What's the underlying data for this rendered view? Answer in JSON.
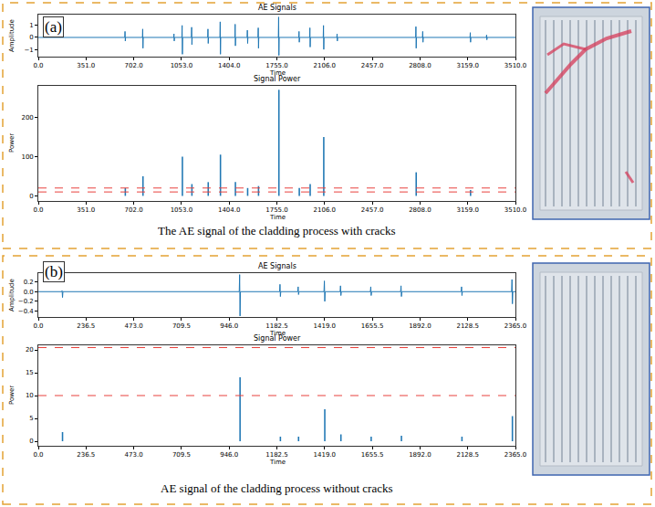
{
  "panels": [
    {
      "label": "(a)",
      "caption": "The AE signal of the cladding process with cracks"
    },
    {
      "label": "(b)",
      "caption": "AE signal of the cladding process without cracks"
    }
  ],
  "chart_data": [
    {
      "type": "line",
      "title": "AE Signals",
      "xlabel": "Time",
      "ylabel": "Amplitude",
      "color": "#1f77b4",
      "x": [
        0,
        636,
        638,
        640,
        642,
        766,
        768,
        770,
        772,
        996,
        998,
        1000,
        1002,
        1056,
        1058,
        1060,
        1062,
        1126,
        1128,
        1130,
        1132,
        1246,
        1248,
        1250,
        1252,
        1336,
        1338,
        1340,
        1342,
        1446,
        1448,
        1450,
        1452,
        1536,
        1538,
        1540,
        1542,
        1616,
        1618,
        1620,
        1622,
        1766,
        1768,
        1770,
        1772,
        1916,
        1918,
        1920,
        1922,
        1996,
        1998,
        2000,
        2002,
        2096,
        2098,
        2100,
        2102,
        2196,
        2198,
        2200,
        2202,
        2776,
        2778,
        2780,
        2782,
        2826,
        2828,
        2830,
        2832,
        3176,
        3178,
        3180,
        3182,
        3296,
        3298,
        3300,
        3302,
        3510
      ],
      "values": [
        0,
        0,
        0.5,
        -0.3,
        0,
        0,
        0.7,
        -0.9,
        0,
        0,
        0.3,
        -0.3,
        0,
        0,
        1.0,
        -1.4,
        0,
        0,
        0.85,
        -0.6,
        0,
        0,
        0.7,
        -0.5,
        0,
        0,
        1.3,
        -1.4,
        0,
        0,
        1.1,
        -0.7,
        0,
        0,
        0.6,
        -0.5,
        0,
        0,
        0.8,
        -0.9,
        0,
        0,
        1.7,
        -1.5,
        0,
        0,
        0.5,
        -0.4,
        0,
        0,
        0.8,
        -0.8,
        0,
        0,
        1.0,
        -1.0,
        0,
        0,
        0.3,
        -0.3,
        0,
        0,
        0.9,
        -0.9,
        0,
        0,
        0.5,
        -0.4,
        0,
        0,
        0.4,
        -0.4,
        0,
        0,
        0.2,
        -0.2,
        0,
        0
      ],
      "xlim": [
        0,
        3510
      ],
      "xticks": [
        {
          "value": 0,
          "label": "0.0"
        },
        {
          "value": 351,
          "label": "351.0"
        },
        {
          "value": 702,
          "label": "702.0"
        },
        {
          "value": 1053,
          "label": "1053.0"
        },
        {
          "value": 1404,
          "label": "1404.0"
        },
        {
          "value": 1755,
          "label": "1755.0"
        },
        {
          "value": 2106,
          "label": "2106.0"
        },
        {
          "value": 2457,
          "label": "2457.0"
        },
        {
          "value": 2808,
          "label": "2808.0"
        },
        {
          "value": 3159,
          "label": "3159.0"
        },
        {
          "value": 3510,
          "label": "3510.0"
        }
      ],
      "ylim": [
        -1.6,
        1.9
      ],
      "yticks": [
        {
          "value": -1,
          "label": "−1"
        },
        0,
        1
      ]
    },
    {
      "type": "bar",
      "title": "Signal Power",
      "xlabel": "Time",
      "ylabel": "Power",
      "color": "#1f77b4",
      "x": [
        640,
        770,
        1060,
        1130,
        1250,
        1340,
        1450,
        1540,
        1620,
        1770,
        1920,
        2000,
        2100,
        2780,
        3180
      ],
      "values": [
        20,
        50,
        100,
        30,
        35,
        105,
        35,
        20,
        25,
        270,
        20,
        30,
        150,
        60,
        15
      ],
      "hlines": [
        {
          "value": 10,
          "color": "#e8413c",
          "line_style": "dash"
        },
        {
          "value": 20,
          "color": "#e8413c",
          "line_style": "dash"
        }
      ],
      "xlim": [
        0,
        3510
      ],
      "xticks": [
        {
          "value": 0,
          "label": "0.0"
        },
        {
          "value": 351,
          "label": "351.0"
        },
        {
          "value": 702,
          "label": "702.0"
        },
        {
          "value": 1053,
          "label": "1053.0"
        },
        {
          "value": 1404,
          "label": "1404.0"
        },
        {
          "value": 1755,
          "label": "1755.0"
        },
        {
          "value": 2106,
          "label": "2106.0"
        },
        {
          "value": 2457,
          "label": "2457.0"
        },
        {
          "value": 2808,
          "label": "2808.0"
        },
        {
          "value": 3159,
          "label": "3159.0"
        },
        {
          "value": 3510,
          "label": "3510.0"
        }
      ],
      "ylim": [
        -13,
        280
      ],
      "yticks": [
        0,
        100,
        200
      ]
    },
    {
      "type": "line",
      "title": "AE Signals",
      "xlabel": "Time",
      "ylabel": "Amplitude",
      "color": "#1f77b4",
      "x": [
        0,
        116,
        118,
        120,
        122,
        996,
        998,
        1000,
        1002,
        1196,
        1198,
        1200,
        1202,
        1286,
        1288,
        1290,
        1292,
        1416,
        1418,
        1420,
        1422,
        1496,
        1498,
        1500,
        1502,
        1646,
        1648,
        1650,
        1652,
        1796,
        1798,
        1800,
        1802,
        2096,
        2098,
        2100,
        2102,
        2346,
        2348,
        2350,
        2352,
        2365
      ],
      "values": [
        0,
        0,
        0.02,
        -0.12,
        0,
        0,
        0.35,
        -0.5,
        0,
        0,
        0.15,
        -0.1,
        0,
        0,
        0.1,
        -0.06,
        0,
        0,
        0.22,
        -0.2,
        0,
        0,
        0.12,
        -0.08,
        0,
        0,
        0.1,
        -0.08,
        0,
        0,
        0.12,
        -0.1,
        0,
        0,
        0.1,
        -0.08,
        0,
        0,
        0.25,
        -0.25,
        0,
        0
      ],
      "xlim": [
        0,
        2365
      ],
      "xticks": [
        {
          "value": 0,
          "label": "0.0"
        },
        236.5,
        {
          "value": 473,
          "label": "473.0"
        },
        709.5,
        {
          "value": 946,
          "label": "946.0"
        },
        1182.5,
        {
          "value": 1419,
          "label": "1419.0"
        },
        1655.5,
        {
          "value": 1892,
          "label": "1892.0"
        },
        2128.5,
        {
          "value": 2365,
          "label": "2365.0"
        }
      ],
      "ylim": [
        -0.52,
        0.38
      ],
      "yticks": [
        {
          "value": -0.4,
          "label": "−0.4"
        },
        {
          "value": -0.2,
          "label": "−0.2"
        },
        {
          "value": 0,
          "label": "0.0"
        },
        0.2
      ]
    },
    {
      "type": "bar",
      "title": "Signal Power",
      "xlabel": "Time",
      "ylabel": "Power",
      "color": "#1f77b4",
      "x": [
        120,
        1000,
        1200,
        1290,
        1420,
        1500,
        1650,
        1800,
        2100,
        2350
      ],
      "values": [
        2,
        14,
        1,
        1,
        7,
        1.5,
        1,
        1.2,
        1,
        5.5
      ],
      "hlines": [
        {
          "value": 10,
          "color": "#e8413c",
          "line_style": "dash"
        },
        {
          "value": 20.5,
          "color": "#e8413c",
          "line_style": "dash"
        }
      ],
      "xlim": [
        0,
        2365
      ],
      "xticks": [
        {
          "value": 0,
          "label": "0.0"
        },
        236.5,
        {
          "value": 473,
          "label": "473.0"
        },
        709.5,
        {
          "value": 946,
          "label": "946.0"
        },
        1182.5,
        {
          "value": 1419,
          "label": "1419.0"
        },
        1655.5,
        {
          "value": 1892,
          "label": "1892.0"
        },
        2128.5,
        {
          "value": 2365,
          "label": "2365.0"
        }
      ],
      "ylim": [
        -1,
        21
      ],
      "yticks": [
        0,
        5,
        10,
        15,
        20
      ]
    }
  ]
}
